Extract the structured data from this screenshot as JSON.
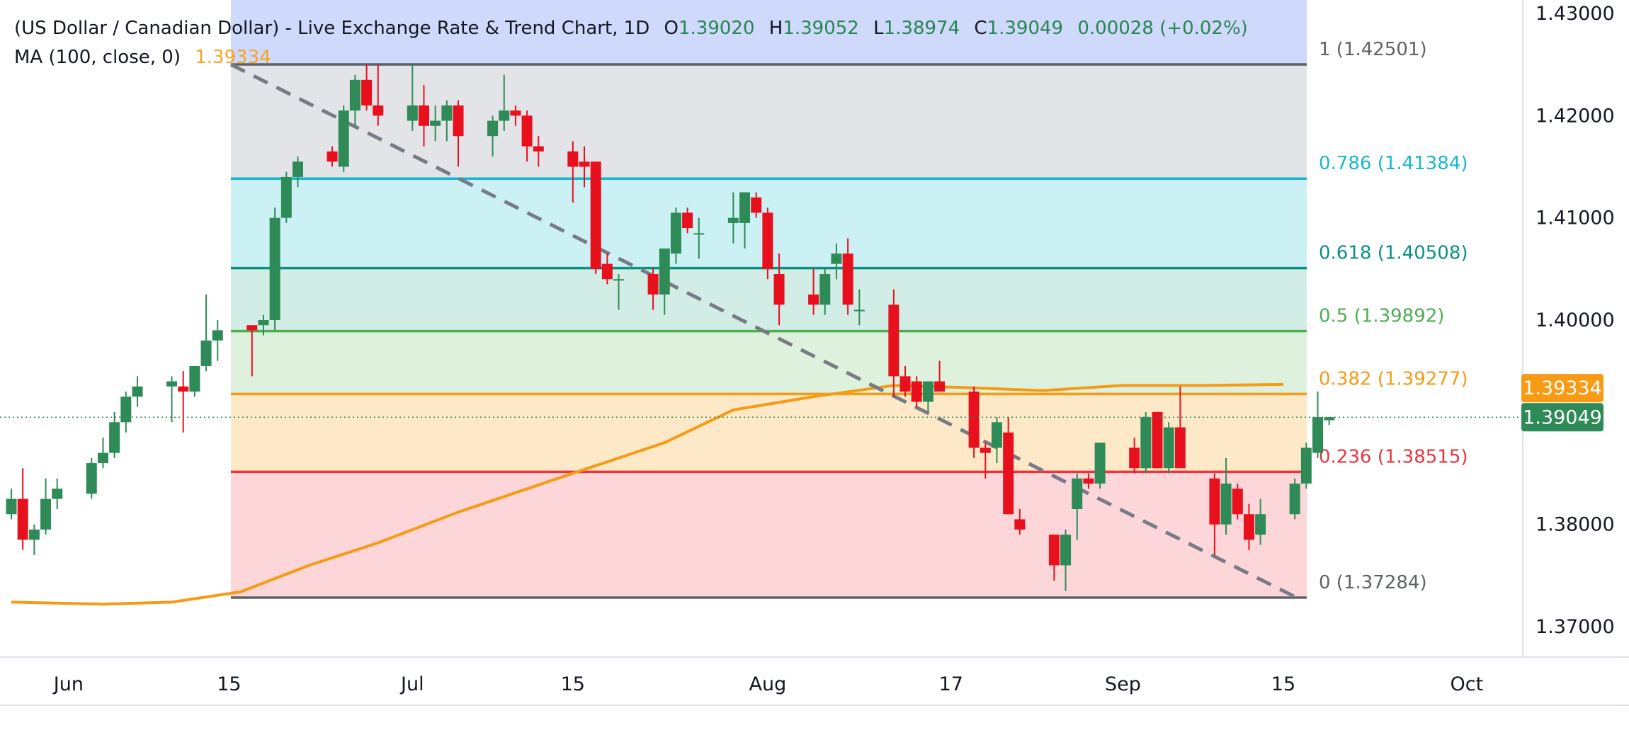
{
  "header": {
    "title": "(US Dollar / Canadian Dollar) - Live Exchange Rate & Trend Chart, 1D",
    "open_label": "O",
    "open": "1.39020",
    "high_label": "H",
    "high": "1.39052",
    "low_label": "L",
    "low": "1.38974",
    "close_label": "C",
    "close": "1.39049",
    "change": "0.00028 (+0.02%)",
    "ma_label": "MA (100, close, 0)",
    "ma_value": "1.39334"
  },
  "colors": {
    "up": "#2e8b57",
    "down": "#e8101d",
    "ma": "#f79a14",
    "fib_1": "#5f6368",
    "fib_0786": "#17b7d0",
    "fib_0618": "#0b9184",
    "fib_05": "#4caf50",
    "fib_0382": "#f79a14",
    "fib_0236": "#e8363f",
    "fib_0": "#5f6368"
  },
  "chart_data": {
    "type": "candlestick",
    "ylim": [
      1.366,
      1.4304
    ],
    "yticks": [
      "1.43000",
      "1.42000",
      "1.41000",
      "1.40000",
      "1.38000",
      "1.37000"
    ],
    "xtick_labels": [
      "Jun",
      "15",
      "Jul",
      "15",
      "Aug",
      "17",
      "Sep",
      "15",
      "Oct"
    ],
    "xtick_dates": [
      "2024-06-01",
      "2024-06-15",
      "2024-07-01",
      "2024-07-15",
      "2024-08-01",
      "2024-08-17",
      "2024-09-01",
      "2024-09-15",
      "2024-10-01"
    ],
    "price_labels": [
      {
        "value": 1.39334,
        "label": "1.39334",
        "color": "#f79a14"
      },
      {
        "value": 1.39049,
        "label": "1.39049",
        "color": "#2e8b57"
      }
    ],
    "fib_levels": [
      {
        "ratio": "1",
        "value": 1.42501,
        "label": "1 (1.42501)",
        "color": "#5f6368"
      },
      {
        "ratio": "0.786",
        "value": 1.41384,
        "label": "0.786 (1.41384)",
        "color": "#17b7d0"
      },
      {
        "ratio": "0.618",
        "value": 1.40508,
        "label": "0.618 (1.40508)",
        "color": "#0b9184"
      },
      {
        "ratio": "0.5",
        "value": 1.39892,
        "label": "0.5 (1.39892)",
        "color": "#4caf50"
      },
      {
        "ratio": "0.382",
        "value": 1.39277,
        "label": "0.382 (1.39277)",
        "color": "#f79a14"
      },
      {
        "ratio": "0.236",
        "value": 1.38515,
        "label": "0.236 (1.38515)",
        "color": "#e8363f"
      },
      {
        "ratio": "0",
        "value": 1.37284,
        "label": "0 (1.37284)",
        "color": "#5f6368"
      }
    ],
    "fib_start_date": "2024-06-17",
    "fib_end_date": "2024-09-19",
    "trendline": {
      "start": {
        "date": "2024-06-17",
        "value": 1.425
      },
      "end": {
        "date": "2024-09-19",
        "value": 1.3728
      }
    },
    "ma_series": {
      "name": "MA (100, close, 0)",
      "points": [
        [
          "2024-05-27",
          1.3724
        ],
        [
          "2024-06-04",
          1.3722
        ],
        [
          "2024-06-10",
          1.3724
        ],
        [
          "2024-06-16",
          1.3734
        ],
        [
          "2024-06-22",
          1.376
        ],
        [
          "2024-06-28",
          1.3782
        ],
        [
          "2024-07-05",
          1.3812
        ],
        [
          "2024-07-15",
          1.385
        ],
        [
          "2024-07-23",
          1.388
        ],
        [
          "2024-07-29",
          1.3912
        ],
        [
          "2024-08-05",
          1.3925
        ],
        [
          "2024-08-12",
          1.3936
        ],
        [
          "2024-08-18",
          1.3934
        ],
        [
          "2024-08-25",
          1.3931
        ],
        [
          "2024-09-01",
          1.3936
        ],
        [
          "2024-09-08",
          1.3936
        ],
        [
          "2024-09-15",
          1.3937
        ]
      ]
    },
    "candles": [
      {
        "date": "2024-05-27",
        "open": 1.381,
        "high": 1.3835,
        "low": 1.3805,
        "close": 1.3825
      },
      {
        "date": "2024-05-28",
        "open": 1.3825,
        "high": 1.3855,
        "low": 1.3775,
        "close": 1.3785
      },
      {
        "date": "2024-05-29",
        "open": 1.3785,
        "high": 1.38,
        "low": 1.377,
        "close": 1.3795
      },
      {
        "date": "2024-05-30",
        "open": 1.3795,
        "high": 1.3845,
        "low": 1.379,
        "close": 1.3825
      },
      {
        "date": "2024-05-31",
        "open": 1.3825,
        "high": 1.3845,
        "low": 1.3815,
        "close": 1.3835
      },
      {
        "date": "2024-06-03",
        "open": 1.383,
        "high": 1.3865,
        "low": 1.3825,
        "close": 1.386
      },
      {
        "date": "2024-06-04",
        "open": 1.386,
        "high": 1.3885,
        "low": 1.3855,
        "close": 1.387
      },
      {
        "date": "2024-06-05",
        "open": 1.387,
        "high": 1.391,
        "low": 1.3865,
        "close": 1.39
      },
      {
        "date": "2024-06-06",
        "open": 1.39,
        "high": 1.393,
        "low": 1.389,
        "close": 1.3925
      },
      {
        "date": "2024-06-07",
        "open": 1.3925,
        "high": 1.3945,
        "low": 1.3915,
        "close": 1.3935
      },
      {
        "date": "2024-06-10",
        "open": 1.3935,
        "high": 1.3945,
        "low": 1.39,
        "close": 1.394
      },
      {
        "date": "2024-06-11",
        "open": 1.3935,
        "high": 1.395,
        "low": 1.389,
        "close": 1.393
      },
      {
        "date": "2024-06-12",
        "open": 1.393,
        "high": 1.3955,
        "low": 1.3925,
        "close": 1.3955
      },
      {
        "date": "2024-06-13",
        "open": 1.3955,
        "high": 1.4025,
        "low": 1.395,
        "close": 1.398
      },
      {
        "date": "2024-06-14",
        "open": 1.398,
        "high": 1.4,
        "low": 1.396,
        "close": 1.399
      },
      {
        "date": "2024-06-17",
        "open": 1.3995,
        "high": 1.3995,
        "low": 1.3945,
        "close": 1.399
      },
      {
        "date": "2024-06-18",
        "open": 1.3995,
        "high": 1.4005,
        "low": 1.3985,
        "close": 1.4
      },
      {
        "date": "2024-06-19",
        "open": 1.4,
        "high": 1.411,
        "low": 1.399,
        "close": 1.41
      },
      {
        "date": "2024-06-20",
        "open": 1.41,
        "high": 1.4145,
        "low": 1.4095,
        "close": 1.414
      },
      {
        "date": "2024-06-21",
        "open": 1.414,
        "high": 1.416,
        "low": 1.413,
        "close": 1.4155
      },
      {
        "date": "2024-06-24",
        "open": 1.4165,
        "high": 1.417,
        "low": 1.415,
        "close": 1.4155
      },
      {
        "date": "2024-06-25",
        "open": 1.415,
        "high": 1.421,
        "low": 1.4145,
        "close": 1.4205
      },
      {
        "date": "2024-06-26",
        "open": 1.4205,
        "high": 1.424,
        "low": 1.419,
        "close": 1.4235
      },
      {
        "date": "2024-06-27",
        "open": 1.4235,
        "high": 1.425,
        "low": 1.4205,
        "close": 1.421
      },
      {
        "date": "2024-06-28",
        "open": 1.421,
        "high": 1.425,
        "low": 1.419,
        "close": 1.42
      },
      {
        "date": "2024-07-01",
        "open": 1.4195,
        "high": 1.425,
        "low": 1.4185,
        "close": 1.421
      },
      {
        "date": "2024-07-02",
        "open": 1.421,
        "high": 1.423,
        "low": 1.417,
        "close": 1.419
      },
      {
        "date": "2024-07-03",
        "open": 1.419,
        "high": 1.421,
        "low": 1.4175,
        "close": 1.4195
      },
      {
        "date": "2024-07-04",
        "open": 1.4195,
        "high": 1.4215,
        "low": 1.4175,
        "close": 1.421
      },
      {
        "date": "2024-07-05",
        "open": 1.421,
        "high": 1.4215,
        "low": 1.415,
        "close": 1.418
      },
      {
        "date": "2024-07-08",
        "open": 1.418,
        "high": 1.42,
        "low": 1.416,
        "close": 1.4195
      },
      {
        "date": "2024-07-09",
        "open": 1.4195,
        "high": 1.424,
        "low": 1.4185,
        "close": 1.4205
      },
      {
        "date": "2024-07-10",
        "open": 1.4205,
        "high": 1.421,
        "low": 1.419,
        "close": 1.42
      },
      {
        "date": "2024-07-11",
        "open": 1.42,
        "high": 1.4205,
        "low": 1.4155,
        "close": 1.417
      },
      {
        "date": "2024-07-12",
        "open": 1.417,
        "high": 1.418,
        "low": 1.415,
        "close": 1.4165
      },
      {
        "date": "2024-07-15",
        "open": 1.4165,
        "high": 1.4175,
        "low": 1.4115,
        "close": 1.415
      },
      {
        "date": "2024-07-16",
        "open": 1.4155,
        "high": 1.417,
        "low": 1.413,
        "close": 1.415
      },
      {
        "date": "2024-07-17",
        "open": 1.4155,
        "high": 1.4155,
        "low": 1.4045,
        "close": 1.405
      },
      {
        "date": "2024-07-18",
        "open": 1.4055,
        "high": 1.4065,
        "low": 1.4035,
        "close": 1.404
      },
      {
        "date": "2024-07-19",
        "open": 1.404,
        "high": 1.4045,
        "low": 1.401,
        "close": 1.404
      },
      {
        "date": "2024-07-22",
        "open": 1.4045,
        "high": 1.405,
        "low": 1.401,
        "close": 1.4025
      },
      {
        "date": "2024-07-23",
        "open": 1.4025,
        "high": 1.407,
        "low": 1.4005,
        "close": 1.407
      },
      {
        "date": "2024-07-24",
        "open": 1.4065,
        "high": 1.411,
        "low": 1.4055,
        "close": 1.4105
      },
      {
        "date": "2024-07-25",
        "open": 1.4105,
        "high": 1.411,
        "low": 1.4085,
        "close": 1.409
      },
      {
        "date": "2024-07-26",
        "open": 1.4085,
        "high": 1.41,
        "low": 1.406,
        "close": 1.4085
      },
      {
        "date": "2024-07-29",
        "open": 1.4095,
        "high": 1.4125,
        "low": 1.4075,
        "close": 1.41
      },
      {
        "date": "2024-07-30",
        "open": 1.4095,
        "high": 1.4125,
        "low": 1.407,
        "close": 1.4125
      },
      {
        "date": "2024-07-31",
        "open": 1.412,
        "high": 1.4125,
        "low": 1.41,
        "close": 1.4105
      },
      {
        "date": "2024-08-01",
        "open": 1.4105,
        "high": 1.411,
        "low": 1.404,
        "close": 1.405
      },
      {
        "date": "2024-08-02",
        "open": 1.4045,
        "high": 1.4065,
        "low": 1.3995,
        "close": 1.4015
      },
      {
        "date": "2024-08-05",
        "open": 1.4025,
        "high": 1.405,
        "low": 1.4005,
        "close": 1.4015
      },
      {
        "date": "2024-08-06",
        "open": 1.4015,
        "high": 1.405,
        "low": 1.4005,
        "close": 1.4045
      },
      {
        "date": "2024-08-07",
        "open": 1.4055,
        "high": 1.4075,
        "low": 1.404,
        "close": 1.4065
      },
      {
        "date": "2024-08-08",
        "open": 1.4065,
        "high": 1.408,
        "low": 1.4005,
        "close": 1.4015
      },
      {
        "date": "2024-08-09",
        "open": 1.401,
        "high": 1.403,
        "low": 1.3995,
        "close": 1.401
      },
      {
        "date": "2024-08-12",
        "open": 1.4015,
        "high": 1.403,
        "low": 1.3925,
        "close": 1.3945
      },
      {
        "date": "2024-08-13",
        "open": 1.3945,
        "high": 1.3955,
        "low": 1.3925,
        "close": 1.393
      },
      {
        "date": "2024-08-14",
        "open": 1.394,
        "high": 1.3945,
        "low": 1.3915,
        "close": 1.392
      },
      {
        "date": "2024-08-15",
        "open": 1.392,
        "high": 1.394,
        "low": 1.391,
        "close": 1.394
      },
      {
        "date": "2024-08-16",
        "open": 1.394,
        "high": 1.396,
        "low": 1.393,
        "close": 1.393
      },
      {
        "date": "2024-08-19",
        "open": 1.393,
        "high": 1.3935,
        "low": 1.3865,
        "close": 1.3875
      },
      {
        "date": "2024-08-20",
        "open": 1.3875,
        "high": 1.388,
        "low": 1.3845,
        "close": 1.387
      },
      {
        "date": "2024-08-21",
        "open": 1.3875,
        "high": 1.3905,
        "low": 1.386,
        "close": 1.39
      },
      {
        "date": "2024-08-22",
        "open": 1.389,
        "high": 1.3905,
        "low": 1.381,
        "close": 1.381
      },
      {
        "date": "2024-08-23",
        "open": 1.3805,
        "high": 1.3815,
        "low": 1.379,
        "close": 1.3795
      },
      {
        "date": "2024-08-26",
        "open": 1.379,
        "high": 1.379,
        "low": 1.3745,
        "close": 1.376
      },
      {
        "date": "2024-08-27",
        "open": 1.376,
        "high": 1.3795,
        "low": 1.3735,
        "close": 1.379
      },
      {
        "date": "2024-08-28",
        "open": 1.3815,
        "high": 1.385,
        "low": 1.3785,
        "close": 1.3845
      },
      {
        "date": "2024-08-29",
        "open": 1.3845,
        "high": 1.385,
        "low": 1.3835,
        "close": 1.384
      },
      {
        "date": "2024-08-30",
        "open": 1.384,
        "high": 1.388,
        "low": 1.3835,
        "close": 1.388
      },
      {
        "date": "2024-09-02",
        "open": 1.3875,
        "high": 1.3885,
        "low": 1.385,
        "close": 1.3855
      },
      {
        "date": "2024-09-03",
        "open": 1.3855,
        "high": 1.391,
        "low": 1.385,
        "close": 1.3905
      },
      {
        "date": "2024-09-04",
        "open": 1.391,
        "high": 1.391,
        "low": 1.3855,
        "close": 1.3855
      },
      {
        "date": "2024-09-05",
        "open": 1.3855,
        "high": 1.39,
        "low": 1.385,
        "close": 1.3895
      },
      {
        "date": "2024-09-06",
        "open": 1.3895,
        "high": 1.3935,
        "low": 1.3855,
        "close": 1.3855
      },
      {
        "date": "2024-09-09",
        "open": 1.3845,
        "high": 1.385,
        "low": 1.377,
        "close": 1.38
      },
      {
        "date": "2024-09-10",
        "open": 1.38,
        "high": 1.3865,
        "low": 1.379,
        "close": 1.384
      },
      {
        "date": "2024-09-11",
        "open": 1.3835,
        "high": 1.384,
        "low": 1.3805,
        "close": 1.381
      },
      {
        "date": "2024-09-12",
        "open": 1.381,
        "high": 1.382,
        "low": 1.3775,
        "close": 1.3785
      },
      {
        "date": "2024-09-13",
        "open": 1.379,
        "high": 1.3825,
        "low": 1.378,
        "close": 1.381
      },
      {
        "date": "2024-09-16",
        "open": 1.381,
        "high": 1.3845,
        "low": 1.3805,
        "close": 1.384
      },
      {
        "date": "2024-09-17",
        "open": 1.384,
        "high": 1.388,
        "low": 1.3835,
        "close": 1.3875
      },
      {
        "date": "2024-09-18",
        "open": 1.387,
        "high": 1.393,
        "low": 1.3865,
        "close": 1.3905
      },
      {
        "date": "2024-09-19",
        "open": 1.3902,
        "high": 1.39052,
        "low": 1.38974,
        "close": 1.39049
      }
    ]
  }
}
